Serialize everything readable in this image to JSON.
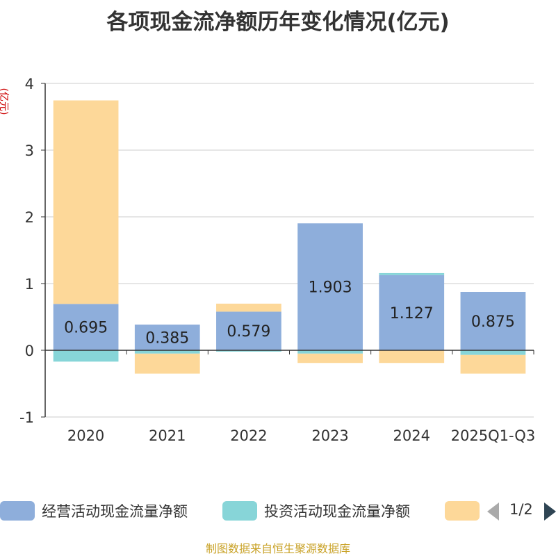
{
  "chart_data": {
    "type": "bar",
    "stacked": true,
    "title": "各项现金流净额历年变化情况(亿元)",
    "y_unit_label": "(亿元)",
    "categories": [
      "2020",
      "2021",
      "2022",
      "2023",
      "2024",
      "2025Q1-Q3"
    ],
    "ylim": [
      -1,
      4
    ],
    "yticks": [
      -1,
      0,
      1,
      2,
      3,
      4
    ],
    "grid": true,
    "legend_position": "bottom",
    "series": [
      {
        "name": "经营活动现金流量净额",
        "color": "#8eaedb",
        "values": [
          0.695,
          0.385,
          0.579,
          1.903,
          1.127,
          0.875
        ],
        "show_labels": true
      },
      {
        "name": "投资活动现金流量净额",
        "color": "#87d5d8",
        "values": [
          -0.17,
          -0.05,
          -0.02,
          -0.05,
          0.03,
          -0.07
        ],
        "show_labels": false
      },
      {
        "name": "",
        "color": "#fdd899",
        "values": [
          3.05,
          -0.3,
          0.12,
          -0.14,
          -0.19,
          -0.28
        ],
        "show_labels": false
      }
    ]
  },
  "legend": {
    "page_indicator": "1/2"
  },
  "source_note": "制图数据来自恒生聚源数据库"
}
